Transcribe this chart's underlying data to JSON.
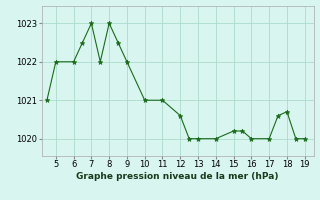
{
  "x_vals": [
    4.5,
    5,
    6,
    6.5,
    7,
    7.5,
    8,
    8.5,
    9,
    10,
    11,
    12,
    12.5,
    13,
    14,
    15,
    15.5,
    16,
    17,
    17.5,
    18,
    18.5,
    19
  ],
  "y_vals": [
    1021,
    1022,
    1022,
    1022.5,
    1023,
    1022,
    1023,
    1022.5,
    1022,
    1021,
    1021,
    1020.6,
    1020,
    1020,
    1020,
    1020.2,
    1020.2,
    1020,
    1020,
    1020.6,
    1020.7,
    1020,
    1020
  ],
  "line_color": "#1a6b1a",
  "bg_color": "#d8f5f0",
  "grid_color": "#aaddcc",
  "xlabel": "Graphe pression niveau de la mer (hPa)",
  "xlim": [
    4.2,
    19.5
  ],
  "ylim": [
    1019.55,
    1023.45
  ],
  "yticks": [
    1020,
    1021,
    1022,
    1023
  ],
  "xticks": [
    5,
    6,
    7,
    8,
    9,
    10,
    11,
    12,
    13,
    14,
    15,
    16,
    17,
    18,
    19
  ],
  "label_fontsize": 6.5,
  "tick_fontsize": 6
}
